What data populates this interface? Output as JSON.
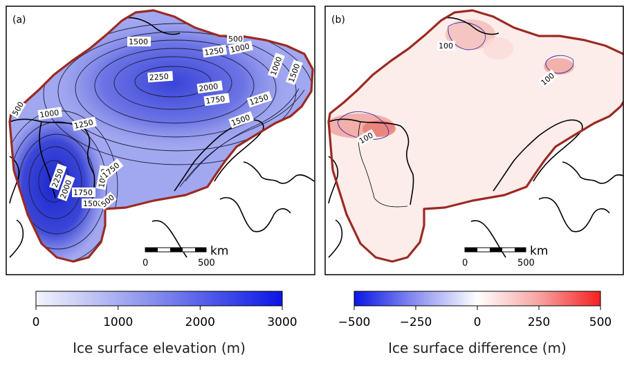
{
  "panels": [
    {
      "label": "(a)",
      "contour_labels": [
        "1500",
        "1250",
        "500",
        "1000",
        "1000",
        "1500",
        "2250",
        "2000",
        "1750",
        "1250",
        "1500",
        "1000",
        "1250",
        "500",
        "2250",
        "2000",
        "1750",
        "1500",
        "1000",
        "1750",
        "500"
      ],
      "scalebar": {
        "unit": "km",
        "ticks": [
          "0",
          "500"
        ]
      },
      "colorbar": {
        "title": "Ice surface elevation (m)",
        "ticks": [
          "0",
          "1000",
          "2000",
          "3000"
        ],
        "range": [
          0,
          3000
        ],
        "colors": [
          "#f2f2fb",
          "#0a16e6"
        ]
      }
    },
    {
      "label": "(b)",
      "contour_labels": [
        "100",
        "100",
        "100"
      ],
      "scalebar": {
        "unit": "km",
        "ticks": [
          "0",
          "500"
        ]
      },
      "colorbar": {
        "title": "Ice surface difference (m)",
        "ticks": [
          "−500",
          "−250",
          "0",
          "250",
          "500"
        ],
        "range": [
          -500,
          500
        ],
        "colors": [
          "#0a16e6",
          "#ffffff",
          "#f52020"
        ]
      }
    }
  ],
  "colors": {
    "ice_margin": "#9b2a22",
    "coastline": "#000000"
  }
}
